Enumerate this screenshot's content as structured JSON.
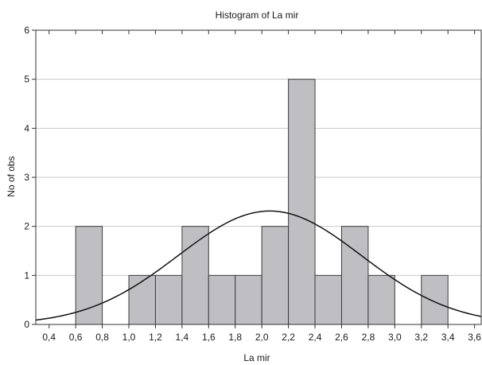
{
  "chart_data": {
    "type": "bar",
    "title": "Histogram of La mir",
    "xlabel": "La mir",
    "ylabel": "No of obs",
    "xlim": [
      0.3,
      3.65
    ],
    "ylim": [
      0,
      6
    ],
    "x_ticks": [
      "0,4",
      "0,6",
      "0,8",
      "1,0",
      "1,2",
      "1,4",
      "1,6",
      "1,8",
      "2,0",
      "2,2",
      "2,4",
      "2,6",
      "2,8",
      "3,0",
      "3,2",
      "3,4",
      "3,6"
    ],
    "x_tick_values": [
      0.4,
      0.6,
      0.8,
      1.0,
      1.2,
      1.4,
      1.6,
      1.8,
      2.0,
      2.2,
      2.4,
      2.6,
      2.8,
      3.0,
      3.2,
      3.4,
      3.6
    ],
    "y_ticks": [
      "0",
      "1",
      "2",
      "3",
      "4",
      "5",
      "6"
    ],
    "y_tick_values": [
      0,
      1,
      2,
      3,
      4,
      5,
      6
    ],
    "grid": "horizontal",
    "bins": [
      {
        "x0": 0.6,
        "x1": 0.8,
        "count": 2
      },
      {
        "x0": 0.8,
        "x1": 1.0,
        "count": 0
      },
      {
        "x0": 1.0,
        "x1": 1.2,
        "count": 1
      },
      {
        "x0": 1.2,
        "x1": 1.4,
        "count": 1
      },
      {
        "x0": 1.4,
        "x1": 1.6,
        "count": 2
      },
      {
        "x0": 1.6,
        "x1": 1.8,
        "count": 1
      },
      {
        "x0": 1.8,
        "x1": 2.0,
        "count": 1
      },
      {
        "x0": 2.0,
        "x1": 2.2,
        "count": 2
      },
      {
        "x0": 2.2,
        "x1": 2.4,
        "count": 5
      },
      {
        "x0": 2.4,
        "x1": 2.6,
        "count": 1
      },
      {
        "x0": 2.6,
        "x1": 2.8,
        "count": 2
      },
      {
        "x0": 2.8,
        "x1": 3.0,
        "count": 1
      },
      {
        "x0": 3.0,
        "x1": 3.2,
        "count": 0
      },
      {
        "x0": 3.2,
        "x1": 3.4,
        "count": 1
      }
    ],
    "normal_curve": {
      "mean": 2.06,
      "sd": 0.69,
      "n": 20,
      "bin_width": 0.2
    },
    "colors": {
      "bar_fill": "#bfbfc3",
      "bar_stroke": "#3c3c3c",
      "curve": "#111111",
      "grid": "#c8c8c8",
      "axis": "#333333"
    }
  }
}
